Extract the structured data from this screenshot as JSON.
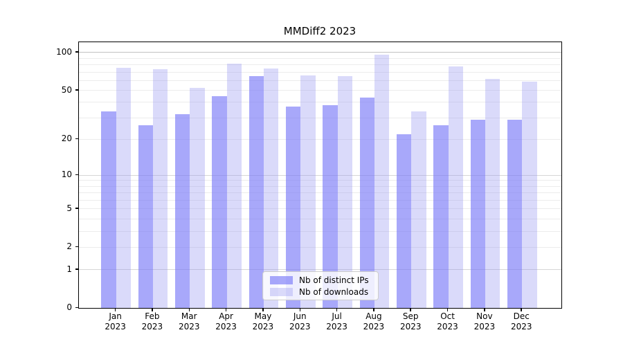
{
  "chart_data": {
    "type": "bar",
    "title": "MMDiff2 2023",
    "y_scale": "log1p",
    "ylim": [
      0,
      120
    ],
    "grid": true,
    "legend_position": "lower-center",
    "categories": [
      "Jan",
      "Feb",
      "Mar",
      "Apr",
      "May",
      "Jun",
      "Jul",
      "Aug",
      "Sep",
      "Oct",
      "Nov",
      "Dec"
    ],
    "x_year_label": "2023",
    "series": [
      {
        "name": "Nb of distinct IPs",
        "color": "rgba(121,121,247,0.65)",
        "values": [
          34,
          26,
          32,
          45,
          65,
          37,
          38,
          44,
          22,
          26,
          29,
          29
        ]
      },
      {
        "name": "Nb of downloads",
        "color": "rgba(150,150,241,0.35)",
        "values": [
          76,
          74,
          52,
          82,
          75,
          66,
          65,
          96,
          34,
          78,
          62,
          59
        ]
      }
    ],
    "y_ticks": [
      0,
      1,
      2,
      5,
      10,
      20,
      50,
      100
    ],
    "minor_gridline_values": [
      2,
      3,
      4,
      5,
      6,
      7,
      8,
      9,
      20,
      30,
      40,
      50,
      60,
      70,
      80,
      90
    ],
    "major_gridline_values": [
      1,
      10,
      100
    ],
    "colors": {
      "minor_grid": "#ececec",
      "major_grid": "#d6d6d6",
      "top_major_grid": "#c2c2c2",
      "axis": "#000000"
    }
  }
}
